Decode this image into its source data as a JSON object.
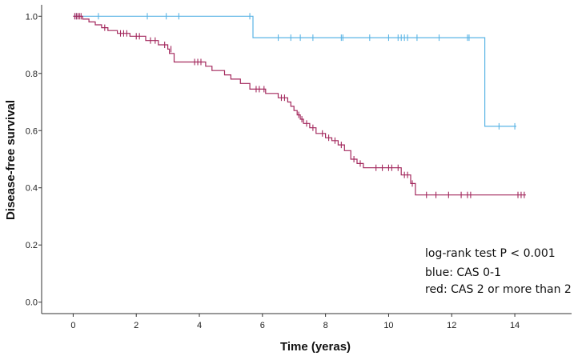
{
  "chart_data": {
    "type": "line",
    "subtype": "kaplan-meier",
    "xlabel": "Time (yeras)",
    "ylabel": "Disease-free survival",
    "xlim": [
      -1,
      15.8
    ],
    "ylim": [
      -0.04,
      1.04
    ],
    "xticks": [
      "0",
      "2",
      "4",
      "6",
      "8",
      "10",
      "12",
      "14"
    ],
    "yticks": [
      "0.0",
      "0.2",
      "0.4",
      "0.6",
      "0.8",
      "1.0"
    ],
    "annotations": [
      "log-rank test P < 0.001",
      "blue: CAS 0-1",
      "red: CAS 2 or more than 2"
    ],
    "series": [
      {
        "name": "CAS 0-1",
        "color": "#5AB4E5",
        "steps": [
          [
            0,
            1.0
          ],
          [
            5.7,
            1.0
          ],
          [
            5.7,
            0.925
          ],
          [
            13.05,
            0.925
          ],
          [
            13.05,
            0.615
          ],
          [
            14.05,
            0.615
          ]
        ],
        "censored": [
          [
            0.1,
            1.0
          ],
          [
            0.8,
            1.0
          ],
          [
            2.35,
            1.0
          ],
          [
            2.95,
            1.0
          ],
          [
            3.35,
            1.0
          ],
          [
            5.6,
            1.0
          ],
          [
            6.5,
            0.925
          ],
          [
            6.9,
            0.925
          ],
          [
            7.2,
            0.925
          ],
          [
            7.6,
            0.925
          ],
          [
            8.5,
            0.925
          ],
          [
            8.55,
            0.925
          ],
          [
            9.4,
            0.925
          ],
          [
            10.0,
            0.925
          ],
          [
            10.3,
            0.925
          ],
          [
            10.4,
            0.925
          ],
          [
            10.5,
            0.925
          ],
          [
            10.6,
            0.925
          ],
          [
            10.9,
            0.925
          ],
          [
            11.6,
            0.925
          ],
          [
            12.5,
            0.925
          ],
          [
            12.55,
            0.925
          ],
          [
            13.5,
            0.615
          ],
          [
            14.0,
            0.615
          ]
        ]
      },
      {
        "name": "CAS 2 or more than 2",
        "color": "#A3285D",
        "steps": [
          [
            0,
            1.0
          ],
          [
            0.3,
            1.0
          ],
          [
            0.3,
            0.99
          ],
          [
            0.5,
            0.99
          ],
          [
            0.5,
            0.98
          ],
          [
            0.7,
            0.98
          ],
          [
            0.7,
            0.97
          ],
          [
            0.9,
            0.97
          ],
          [
            0.9,
            0.96
          ],
          [
            1.1,
            0.96
          ],
          [
            1.1,
            0.95
          ],
          [
            1.4,
            0.95
          ],
          [
            1.4,
            0.94
          ],
          [
            1.8,
            0.94
          ],
          [
            1.8,
            0.93
          ],
          [
            2.3,
            0.93
          ],
          [
            2.3,
            0.915
          ],
          [
            2.7,
            0.915
          ],
          [
            2.7,
            0.9
          ],
          [
            3.0,
            0.9
          ],
          [
            3.0,
            0.885
          ],
          [
            3.05,
            0.885
          ],
          [
            3.05,
            0.87
          ],
          [
            3.2,
            0.87
          ],
          [
            3.2,
            0.84
          ],
          [
            4.2,
            0.84
          ],
          [
            4.2,
            0.825
          ],
          [
            4.4,
            0.825
          ],
          [
            4.4,
            0.81
          ],
          [
            4.8,
            0.81
          ],
          [
            4.8,
            0.795
          ],
          [
            5.0,
            0.795
          ],
          [
            5.0,
            0.78
          ],
          [
            5.3,
            0.78
          ],
          [
            5.3,
            0.765
          ],
          [
            5.6,
            0.765
          ],
          [
            5.6,
            0.745
          ],
          [
            6.1,
            0.745
          ],
          [
            6.1,
            0.73
          ],
          [
            6.5,
            0.73
          ],
          [
            6.5,
            0.715
          ],
          [
            6.8,
            0.715
          ],
          [
            6.8,
            0.7
          ],
          [
            6.9,
            0.7
          ],
          [
            6.9,
            0.685
          ],
          [
            7.0,
            0.685
          ],
          [
            7.0,
            0.67
          ],
          [
            7.1,
            0.67
          ],
          [
            7.1,
            0.655
          ],
          [
            7.2,
            0.655
          ],
          [
            7.2,
            0.64
          ],
          [
            7.3,
            0.64
          ],
          [
            7.3,
            0.625
          ],
          [
            7.5,
            0.625
          ],
          [
            7.5,
            0.61
          ],
          [
            7.7,
            0.61
          ],
          [
            7.7,
            0.59
          ],
          [
            8.0,
            0.59
          ],
          [
            8.0,
            0.575
          ],
          [
            8.2,
            0.575
          ],
          [
            8.2,
            0.565
          ],
          [
            8.4,
            0.565
          ],
          [
            8.4,
            0.55
          ],
          [
            8.6,
            0.55
          ],
          [
            8.6,
            0.53
          ],
          [
            8.8,
            0.53
          ],
          [
            8.8,
            0.5
          ],
          [
            9.0,
            0.5
          ],
          [
            9.0,
            0.485
          ],
          [
            9.2,
            0.485
          ],
          [
            9.2,
            0.47
          ],
          [
            10.4,
            0.47
          ],
          [
            10.4,
            0.445
          ],
          [
            10.7,
            0.445
          ],
          [
            10.7,
            0.415
          ],
          [
            10.85,
            0.415
          ],
          [
            10.85,
            0.375
          ],
          [
            14.35,
            0.375
          ]
        ],
        "censored": [
          [
            0.05,
            1.0
          ],
          [
            0.1,
            1.0
          ],
          [
            0.15,
            1.0
          ],
          [
            0.2,
            1.0
          ],
          [
            0.25,
            1.0
          ],
          [
            1.0,
            0.96
          ],
          [
            1.5,
            0.94
          ],
          [
            1.6,
            0.94
          ],
          [
            1.7,
            0.94
          ],
          [
            2.0,
            0.93
          ],
          [
            2.1,
            0.93
          ],
          [
            2.45,
            0.915
          ],
          [
            2.6,
            0.915
          ],
          [
            2.9,
            0.9
          ],
          [
            3.1,
            0.885
          ],
          [
            3.85,
            0.84
          ],
          [
            3.95,
            0.84
          ],
          [
            4.05,
            0.84
          ],
          [
            5.8,
            0.745
          ],
          [
            5.9,
            0.745
          ],
          [
            6.05,
            0.745
          ],
          [
            6.6,
            0.715
          ],
          [
            6.7,
            0.715
          ],
          [
            7.15,
            0.655
          ],
          [
            7.25,
            0.64
          ],
          [
            7.4,
            0.625
          ],
          [
            7.6,
            0.61
          ],
          [
            7.9,
            0.59
          ],
          [
            8.1,
            0.575
          ],
          [
            8.3,
            0.565
          ],
          [
            8.5,
            0.55
          ],
          [
            8.9,
            0.5
          ],
          [
            9.1,
            0.485
          ],
          [
            9.6,
            0.47
          ],
          [
            9.8,
            0.47
          ],
          [
            10.0,
            0.47
          ],
          [
            10.1,
            0.47
          ],
          [
            10.3,
            0.47
          ],
          [
            10.5,
            0.445
          ],
          [
            10.6,
            0.445
          ],
          [
            10.75,
            0.415
          ],
          [
            11.2,
            0.375
          ],
          [
            11.5,
            0.375
          ],
          [
            11.9,
            0.375
          ],
          [
            12.3,
            0.375
          ],
          [
            12.5,
            0.375
          ],
          [
            12.6,
            0.375
          ],
          [
            14.1,
            0.375
          ],
          [
            14.2,
            0.375
          ],
          [
            14.3,
            0.375
          ]
        ]
      }
    ]
  }
}
